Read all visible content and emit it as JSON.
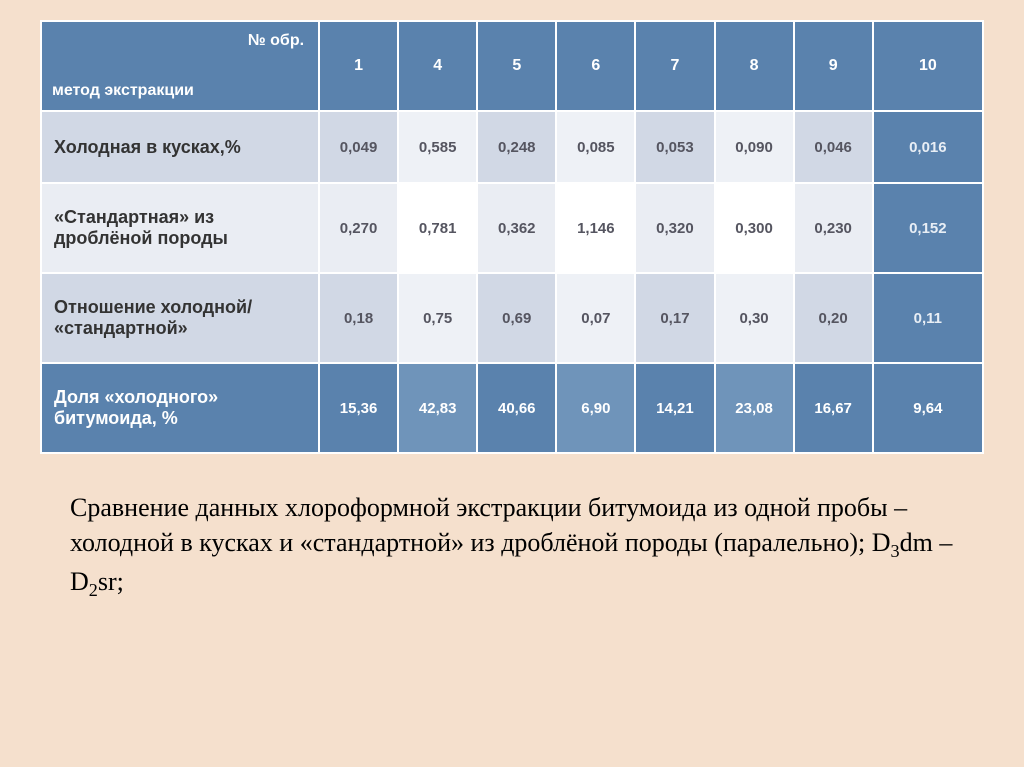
{
  "colors": {
    "page_bg": "#f5e0cd",
    "header_bg": "#5a82ad",
    "row_even_label_bg": "#d1d8e5",
    "row_even_cell_alt1_bg": "#d1d8e5",
    "row_even_cell_alt2_bg": "#eef1f6",
    "row_odd_label_bg": "#eaedf3",
    "row_odd_cell_alt1_bg": "#eaedf3",
    "row_odd_cell_alt2_bg": "#ffffff",
    "blue_label_bg": "#5a82ad",
    "last_col_bg": "#5a82ad",
    "text_dark": "#333333",
    "text_med": "#555560",
    "text_light": "#ffffff",
    "text_lastcol": "#e8eef5",
    "border": "#ffffff"
  },
  "table": {
    "header_corner_top": "№ обр.",
    "header_corner_bottom": "метод экстракции",
    "columns": [
      "1",
      "4",
      "5",
      "6",
      "7",
      "8",
      "9",
      "10"
    ],
    "col_widths": [
      "232",
      "66",
      "66",
      "66",
      "66",
      "66",
      "66",
      "66",
      "92"
    ],
    "rows": [
      {
        "label": "Холодная в кусках,%",
        "label_bg": "#d1d8e5",
        "label_color": "#333333",
        "cells": [
          "0,049",
          "0,585",
          "0,248",
          "0,085",
          "0,053",
          "0,090",
          "0,046",
          "0,016"
        ],
        "cell_bg_alt": [
          "#d1d8e5",
          "#eef1f6"
        ],
        "cell_color": "#555560",
        "last_col_bg": "#5a82ad",
        "last_col_color": "#e8eef5"
      },
      {
        "label": "«Стандартная» из дроблёной породы",
        "label_bg": "#eaedf3",
        "label_color": "#333333",
        "cells": [
          "0,270",
          "0,781",
          "0,362",
          "1,146",
          "0,320",
          "0,300",
          "0,230",
          "0,152"
        ],
        "cell_bg_alt": [
          "#eaedf3",
          "#ffffff"
        ],
        "cell_color": "#555560",
        "last_col_bg": "#5a82ad",
        "last_col_color": "#e8eef5"
      },
      {
        "label": "Отношение холодной/ «стандартной»",
        "label_bg": "#d1d8e5",
        "label_color": "#333333",
        "cells": [
          "0,18",
          "0,75",
          "0,69",
          "0,07",
          "0,17",
          "0,30",
          "0,20",
          "0,11"
        ],
        "cell_bg_alt": [
          "#d1d8e5",
          "#eef1f6"
        ],
        "cell_color": "#555560",
        "last_col_bg": "#5a82ad",
        "last_col_color": "#e8eef5"
      },
      {
        "label": "Доля «холодного» битумоида, %",
        "label_bg": "#5a82ad",
        "label_color": "#ffffff",
        "cells": [
          "15,36",
          "42,83",
          "40,66",
          "6,90",
          "14,21",
          "23,08",
          "16,67",
          "9,64"
        ],
        "cell_bg_alt": [
          "#5a82ad",
          "#6f94ba"
        ],
        "cell_color": "#ffffff",
        "last_col_bg": "#5a82ad",
        "last_col_color": "#ffffff"
      }
    ]
  },
  "caption_html": "Сравнение данных хлороформной экстракции битумоида из одной пробы – холодной в кусках и «стандартной» из дроблёной породы (паралельно); D<sub>3</sub>dm – D<sub>2</sub>sr;"
}
